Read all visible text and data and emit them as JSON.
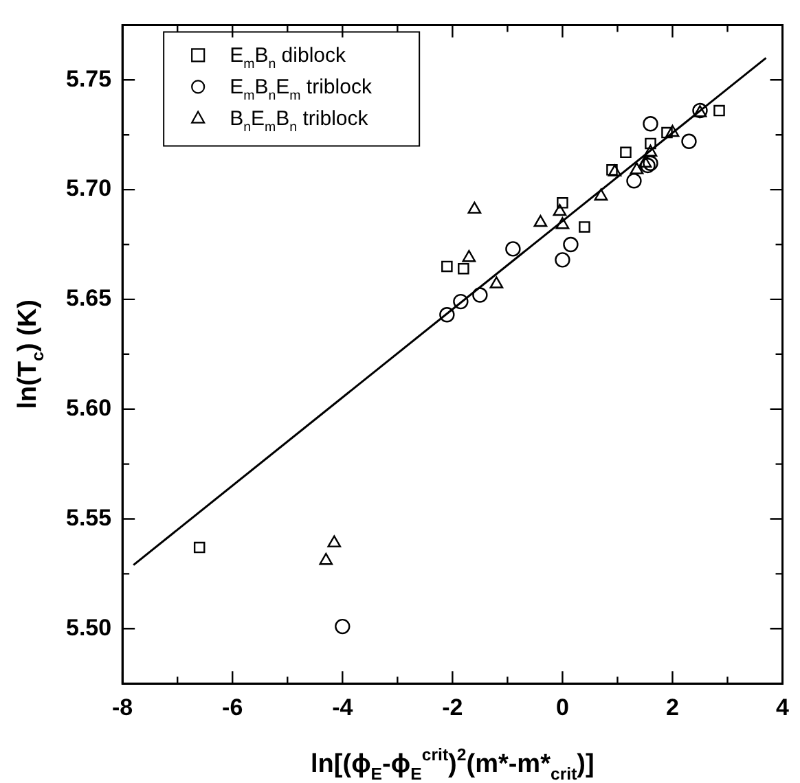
{
  "chart_data": {
    "type": "scatter",
    "xlabel": "ln[(ϕ$_{E}$-ϕ$_{E}$$^{crit}$)$^{2}$(m*-m*$_{crit}$)]",
    "ylabel": "ln(T$_{c}$) (K)",
    "xlim": [
      -8,
      4
    ],
    "ylim": [
      5.475,
      5.775
    ],
    "xticks": [
      -8,
      {
        "value": -7,
        "label": null
      },
      -6,
      {
        "value": -5,
        "label": null
      },
      -4,
      {
        "value": -3,
        "label": null
      },
      -2,
      {
        "value": -1,
        "label": null
      },
      0,
      {
        "value": 1,
        "label": null
      },
      2,
      {
        "value": 3,
        "label": null
      },
      4
    ],
    "yticks": [
      {
        "value": 5.5,
        "label": "5.50"
      },
      {
        "value": 5.525,
        "label": null
      },
      {
        "value": 5.55,
        "label": "5.55"
      },
      {
        "value": 5.575,
        "label": null
      },
      {
        "value": 5.6,
        "label": "5.60"
      },
      {
        "value": 5.625,
        "label": null
      },
      {
        "value": 5.65,
        "label": "5.65"
      },
      {
        "value": 5.675,
        "label": null
      },
      {
        "value": 5.7,
        "label": "5.70"
      },
      {
        "value": 5.725,
        "label": null
      },
      {
        "value": 5.75,
        "label": "5.75"
      }
    ],
    "grid": false,
    "legend": "top left",
    "series": [
      {
        "name": "E$_{m}$B$_{n}$ diblock",
        "marker": "square",
        "color": "#000000",
        "x": [
          -6.6,
          -2.1,
          -1.8,
          0.0,
          0.4,
          0.9,
          1.15,
          1.6,
          1.9,
          2.85
        ],
        "values": [
          5.537,
          5.665,
          5.664,
          5.694,
          5.683,
          5.709,
          5.717,
          5.721,
          5.726,
          5.736
        ]
      },
      {
        "name": "E$_{m}$B$_{n}$E$_{m}$ triblock",
        "marker": "circle",
        "color": "#000000",
        "x": [
          -4.0,
          -2.1,
          -1.85,
          -1.5,
          -0.9,
          0.0,
          0.15,
          1.3,
          1.55,
          1.6,
          1.6,
          2.3,
          2.5
        ],
        "values": [
          5.501,
          5.643,
          5.649,
          5.652,
          5.673,
          5.668,
          5.675,
          5.704,
          5.711,
          5.712,
          5.73,
          5.722,
          5.736
        ]
      },
      {
        "name": "B$_{n}$E$_{m}$B$_{n}$ triblock",
        "marker": "triangle",
        "color": "#000000",
        "x": [
          -4.3,
          -4.15,
          -1.6,
          -1.7,
          -1.2,
          -0.4,
          -0.05,
          0.0,
          0.7,
          0.95,
          1.35,
          1.5,
          1.6,
          2.0,
          2.5
        ],
        "values": [
          5.531,
          5.539,
          5.691,
          5.669,
          5.657,
          5.685,
          5.69,
          5.684,
          5.697,
          5.708,
          5.709,
          5.712,
          5.717,
          5.726,
          5.735
        ]
      },
      {
        "type": "line",
        "marker": "none",
        "line_style": "solid",
        "color": "#000000",
        "x": [
          -7.8,
          3.7
        ],
        "values": [
          5.529,
          5.76
        ]
      }
    ]
  }
}
